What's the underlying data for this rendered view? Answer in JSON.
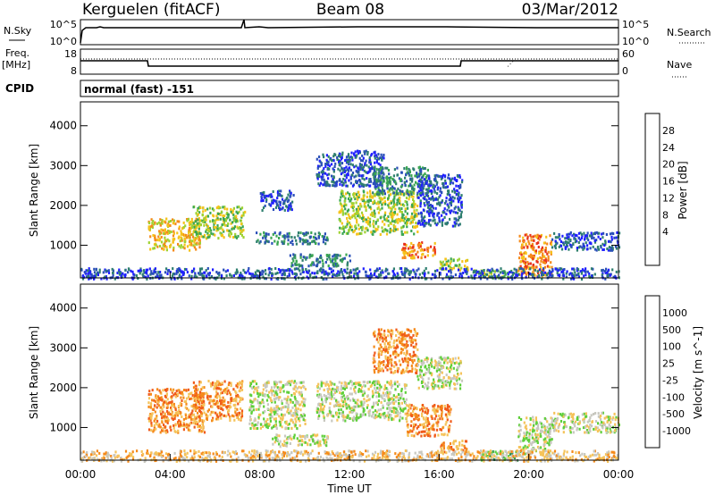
{
  "header": {
    "station": "Kerguelen (fitACF)",
    "beam": "Beam 08",
    "date": "03/Mar/2012"
  },
  "labels": {
    "nsky": "N.Sky",
    "nsearch": "N.Search",
    "freq": "Freq.",
    "freq_unit": "[MHz]",
    "nave": "Nave",
    "cpid": "CPID",
    "cpid_value": "normal (fast) -151",
    "nsky_top": "10^5",
    "nsky_bottom": "10^0",
    "nsearch_top": "10^5",
    "nsearch_bottom": "10^0",
    "freq_top": "18",
    "freq_bottom": "8",
    "nave_top": "60",
    "nave_bottom": "0"
  },
  "chart_data": [
    {
      "type": "heatmap",
      "name": "power",
      "ylabel": "Slant Range [km]",
      "yticks": [
        "1000",
        "2000",
        "3000",
        "4000"
      ],
      "xlim": [
        0,
        24
      ],
      "ylim": [
        180,
        4600
      ],
      "colorbar": {
        "label": "Power [dB]",
        "ticks": [
          "4",
          "8",
          "12",
          "16",
          "20",
          "24",
          "28"
        ],
        "colors": [
          "#1f1fff",
          "#2a4fb8",
          "#2f7f6f",
          "#3aa652",
          "#9fd232",
          "#f5c31a",
          "#f58a1a",
          "#e8321a",
          "#ff0000"
        ]
      },
      "echo_regions": [
        {
          "t0": 3.0,
          "t1": 5.3,
          "r0": 900,
          "r1": 1700,
          "level": 5
        },
        {
          "t0": 5.0,
          "t1": 7.3,
          "r0": 1200,
          "r1": 2000,
          "level": 4
        },
        {
          "t0": 7.8,
          "t1": 11.0,
          "r0": 1050,
          "r1": 1350,
          "level": 2
        },
        {
          "t0": 8.0,
          "t1": 9.5,
          "r0": 1900,
          "r1": 2400,
          "level": 1
        },
        {
          "t0": 9.3,
          "t1": 12.0,
          "r0": 500,
          "r1": 800,
          "level": 2
        },
        {
          "t0": 10.5,
          "t1": 13.5,
          "r0": 2500,
          "r1": 3400,
          "level": 1
        },
        {
          "t0": 11.5,
          "t1": 15.0,
          "r0": 1300,
          "r1": 2400,
          "level": 4
        },
        {
          "t0": 13.0,
          "t1": 15.5,
          "r0": 2300,
          "r1": 3000,
          "level": 2
        },
        {
          "t0": 14.3,
          "t1": 15.8,
          "r0": 700,
          "r1": 1100,
          "level": 6
        },
        {
          "t0": 15.0,
          "t1": 17.0,
          "r0": 1500,
          "r1": 2800,
          "level": 1
        },
        {
          "t0": 16.0,
          "t1": 17.3,
          "r0": 400,
          "r1": 700,
          "level": 4
        },
        {
          "t0": 17.5,
          "t1": 19.5,
          "r0": 200,
          "r1": 400,
          "level": 4
        },
        {
          "t0": 19.5,
          "t1": 21.0,
          "r0": 250,
          "r1": 1300,
          "level": 6
        },
        {
          "t0": 21.0,
          "t1": 24.0,
          "r0": 900,
          "r1": 1350,
          "level": 1
        },
        {
          "t0": 0.0,
          "t1": 24.0,
          "r0": 180,
          "r1": 450,
          "level": 1
        }
      ]
    },
    {
      "type": "heatmap",
      "name": "velocity",
      "ylabel": "Slant Range [km]",
      "xlabel": "Time UT",
      "xticks": [
        "00:00",
        "04:00",
        "08:00",
        "12:00",
        "16:00",
        "20:00",
        "00:00"
      ],
      "yticks": [
        "1000",
        "2000",
        "3000",
        "4000"
      ],
      "xlim": [
        0,
        24
      ],
      "ylim": [
        180,
        4600
      ],
      "colorbar": {
        "label": "Velocity [m s^-1]",
        "ticks": [
          "1000",
          "500",
          "100",
          "25",
          "-25",
          "-100",
          "-500",
          "-1000"
        ],
        "colors": [
          "#1f3fc8",
          "#3b7fb0",
          "#2f8f4f",
          "#5ecf3a",
          "#c8c8c0",
          "#f5c35a",
          "#f58a1a",
          "#f05a1a",
          "#e8001a"
        ]
      },
      "echo_regions": [
        {
          "t0": 3.0,
          "t1": 5.5,
          "r0": 900,
          "r1": 2000,
          "level": 6
        },
        {
          "t0": 5.0,
          "t1": 7.2,
          "r0": 1200,
          "r1": 2200,
          "level": 6
        },
        {
          "t0": 7.5,
          "t1": 10.0,
          "r0": 1000,
          "r1": 2200,
          "level": 4
        },
        {
          "t0": 8.5,
          "t1": 11.0,
          "r0": 550,
          "r1": 850,
          "level": 4
        },
        {
          "t0": 10.5,
          "t1": 14.5,
          "r0": 1200,
          "r1": 2200,
          "level": 4
        },
        {
          "t0": 13.0,
          "t1": 15.0,
          "r0": 2400,
          "r1": 3500,
          "level": 6
        },
        {
          "t0": 14.5,
          "t1": 16.5,
          "r0": 800,
          "r1": 1600,
          "level": 6
        },
        {
          "t0": 15.0,
          "t1": 17.0,
          "r0": 2000,
          "r1": 2800,
          "level": 4
        },
        {
          "t0": 16.0,
          "t1": 17.2,
          "r0": 400,
          "r1": 700,
          "level": 6
        },
        {
          "t0": 17.8,
          "t1": 19.5,
          "r0": 200,
          "r1": 450,
          "level": 3
        },
        {
          "t0": 19.5,
          "t1": 21.0,
          "r0": 300,
          "r1": 1300,
          "level": 4
        },
        {
          "t0": 21.0,
          "t1": 24.0,
          "r0": 900,
          "r1": 1400,
          "level": 4
        },
        {
          "t0": 0.0,
          "t1": 24.0,
          "r0": 180,
          "r1": 450,
          "level": 5
        }
      ]
    }
  ]
}
